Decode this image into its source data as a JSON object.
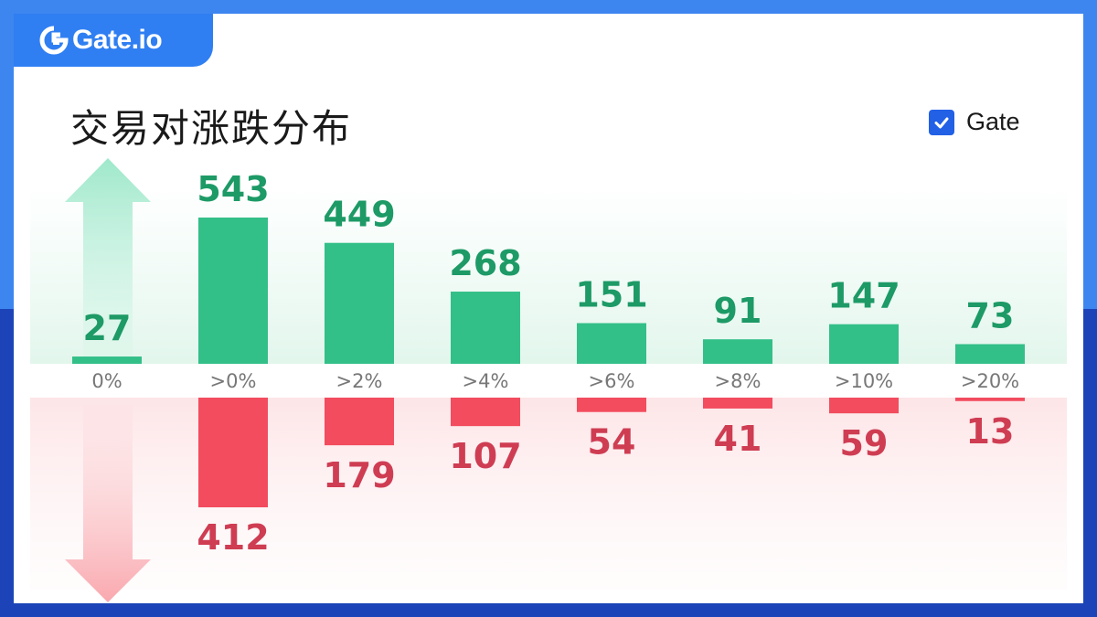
{
  "brand": {
    "logo_text": "Gate.io"
  },
  "legend": {
    "label": "Gate",
    "checked": true
  },
  "colors": {
    "frame_top": "#3d86f0",
    "frame_bottom": "#1c44b8",
    "rise": "#33bf88",
    "rise_text": "#1d9a66",
    "fall": "#f24c5e",
    "fall_text": "#cf3d53",
    "legend_accent": "#2260e6"
  },
  "icons": {
    "up": "up-arrow-icon",
    "down": "down-arrow-icon",
    "check": "check-icon"
  },
  "chart_data": {
    "type": "bar",
    "title": "交易对涨跌分布",
    "categories": [
      "0%",
      ">0%",
      ">2%",
      ">4%",
      ">6%",
      ">8%",
      ">10%",
      ">20%"
    ],
    "series": [
      {
        "name": "rise",
        "values": [
          27,
          543,
          449,
          268,
          151,
          91,
          147,
          73
        ]
      },
      {
        "name": "fall",
        "values": [
          0,
          412,
          179,
          107,
          54,
          41,
          59,
          13
        ]
      }
    ],
    "data_labels": {
      "rise": [
        "27",
        "543",
        "449",
        "268",
        "151",
        "91",
        "147",
        "73"
      ],
      "fall": [
        "",
        "412",
        "179",
        "107",
        "54",
        "41",
        "59",
        "13"
      ]
    },
    "legend": [
      "Gate"
    ],
    "grid": false,
    "legend_position": "top-right"
  }
}
